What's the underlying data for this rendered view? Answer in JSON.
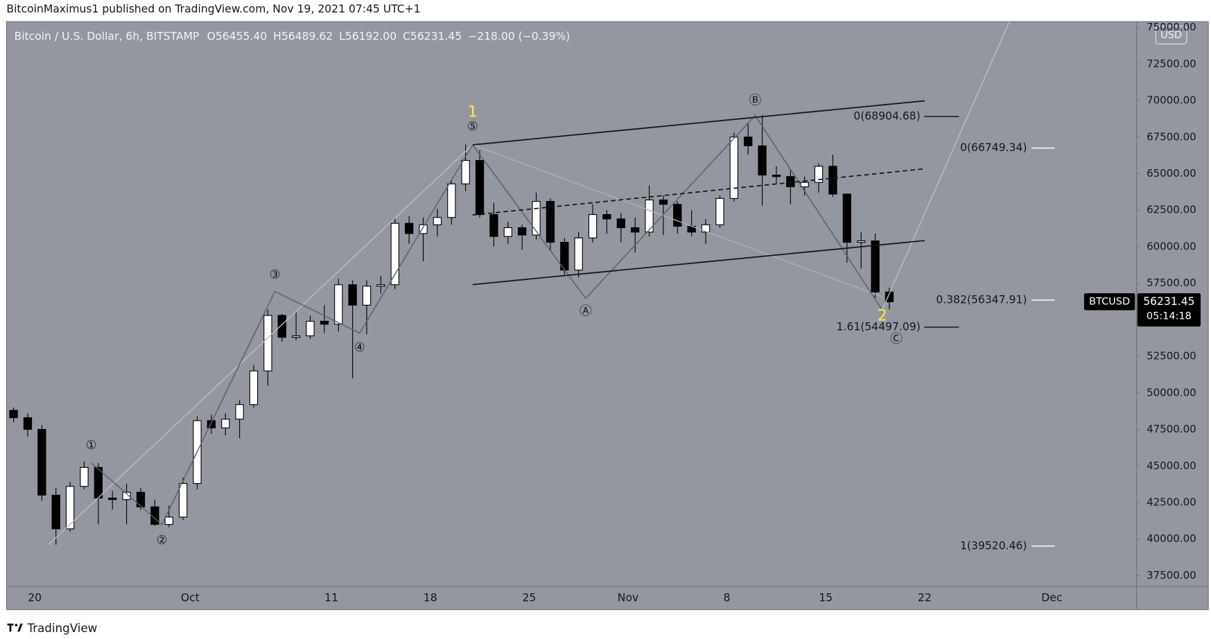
{
  "header": {
    "publisher": "BitcoinMaximus1 published on TradingView.com, Nov 19, 2021 07:45 UTC+1"
  },
  "footer": {
    "brand": "TradingView"
  },
  "chart_data": {
    "type": "candlestick",
    "title": "Bitcoin / U.S. Dollar, 6h, BITSTAMP",
    "ohlc_legend": [
      {
        "label": "O",
        "value": "56455.40"
      },
      {
        "label": "H",
        "value": "56489.62"
      },
      {
        "label": "L",
        "value": "56192.00"
      },
      {
        "label": "C",
        "value": "56231.45"
      }
    ],
    "change": "−218.00 (−0.39%)",
    "currency": "USD",
    "x": [
      "2021-09-18",
      "2021-09-19",
      "2021-09-20",
      "2021-09-21",
      "2021-09-22",
      "2021-09-23",
      "2021-09-24",
      "2021-09-25",
      "2021-09-26",
      "2021-09-27",
      "2021-09-28",
      "2021-09-29",
      "2021-09-30",
      "2021-10-01",
      "2021-10-02",
      "2021-10-03",
      "2021-10-04",
      "2021-10-05",
      "2021-10-06",
      "2021-10-07",
      "2021-10-08",
      "2021-10-09",
      "2021-10-10",
      "2021-10-11",
      "2021-10-12",
      "2021-10-13",
      "2021-10-14",
      "2021-10-15",
      "2021-10-16",
      "2021-10-17",
      "2021-10-18",
      "2021-10-19",
      "2021-10-20",
      "2021-10-21",
      "2021-10-22",
      "2021-10-23",
      "2021-10-24",
      "2021-10-25",
      "2021-10-26",
      "2021-10-27",
      "2021-10-28",
      "2021-10-29",
      "2021-10-30",
      "2021-10-31",
      "2021-11-01",
      "2021-11-02",
      "2021-11-03",
      "2021-11-04",
      "2021-11-05",
      "2021-11-06",
      "2021-11-07",
      "2021-11-08",
      "2021-11-09",
      "2021-11-10",
      "2021-11-11",
      "2021-11-12",
      "2021-11-13",
      "2021-11-14",
      "2021-11-15",
      "2021-11-16",
      "2021-11-17",
      "2021-11-18",
      "2021-11-19"
    ],
    "open": [
      48800,
      48300,
      47500,
      43000,
      40700,
      43600,
      44900,
      42800,
      42700,
      43200,
      42200,
      41000,
      41500,
      43800,
      48100,
      47600,
      48200,
      49200,
      51500,
      55300,
      53800,
      53900,
      54900,
      54700,
      57400,
      56000,
      57300,
      57400,
      61600,
      60900,
      61500,
      62000,
      64300,
      65900,
      62200,
      60700,
      61300,
      60800,
      63100,
      60300,
      58400,
      60600,
      62200,
      61900,
      61300,
      61000,
      63200,
      62900,
      61400,
      61000,
      61500,
      63300,
      67500,
      66900,
      64900,
      64800,
      64100,
      64400,
      65500,
      63600,
      60300,
      60400,
      56900
    ],
    "high": [
      49000,
      48600,
      47800,
      43500,
      43900,
      45300,
      45200,
      43300,
      43800,
      43500,
      42700,
      42300,
      44200,
      48400,
      48500,
      48600,
      49500,
      51900,
      55700,
      55400,
      55500,
      55300,
      56000,
      57800,
      57700,
      57700,
      58000,
      62000,
      62100,
      62000,
      62600,
      64500,
      67000,
      66600,
      63000,
      61700,
      61500,
      63700,
      63300,
      60600,
      61000,
      62900,
      62500,
      62300,
      62000,
      64200,
      63500,
      63100,
      62500,
      61900,
      63500,
      67800,
      68500,
      69000,
      65500,
      65300,
      64800,
      65700,
      66300,
      63600,
      61000,
      60900,
      57200
    ],
    "low": [
      48000,
      47000,
      42600,
      39600,
      40500,
      43400,
      41000,
      42000,
      41000,
      42000,
      40900,
      40800,
      41300,
      43400,
      47200,
      47100,
      46900,
      49000,
      50500,
      53500,
      53600,
      53700,
      54100,
      54200,
      51000,
      54000,
      56800,
      57100,
      60200,
      59000,
      60700,
      61500,
      63800,
      62000,
      60000,
      60200,
      59800,
      60500,
      59700,
      58100,
      57900,
      60300,
      60900,
      60300,
      59600,
      60700,
      60800,
      60900,
      60700,
      60200,
      61300,
      63100,
      66300,
      62800,
      64300,
      62900,
      63500,
      63700,
      63400,
      58900,
      58500,
      56500,
      55700
    ],
    "close": [
      48300,
      47500,
      43000,
      40700,
      43600,
      44900,
      42800,
      42700,
      43200,
      42200,
      41000,
      41500,
      43800,
      48100,
      47600,
      48200,
      49200,
      51500,
      55300,
      53800,
      53900,
      54900,
      54700,
      57400,
      56000,
      57300,
      57400,
      61600,
      60900,
      61500,
      62000,
      64300,
      65900,
      62200,
      60700,
      61300,
      60800,
      63100,
      60300,
      58400,
      60600,
      62200,
      61900,
      61300,
      61000,
      63200,
      62900,
      61400,
      61000,
      61500,
      63300,
      67500,
      66900,
      64900,
      64800,
      64100,
      64400,
      65500,
      63600,
      60300,
      60400,
      56900,
      56231.45
    ],
    "up_color": "#ffffff",
    "down_color": "#000000",
    "wick_color": "#000000",
    "xlim": [
      "2021-09-18",
      "2021-12-07"
    ],
    "xticks": [
      {
        "value": "2021-09-20",
        "label": "20"
      },
      {
        "value": "2021-10-01",
        "label": "Oct"
      },
      {
        "value": "2021-10-11",
        "label": "11"
      },
      {
        "value": "2021-10-18",
        "label": "18"
      },
      {
        "value": "2021-10-25",
        "label": "25"
      },
      {
        "value": "2021-11-01",
        "label": "Nov"
      },
      {
        "value": "2021-11-08",
        "label": "8"
      },
      {
        "value": "2021-11-15",
        "label": "15"
      },
      {
        "value": "2021-11-22",
        "label": "22"
      },
      {
        "value": "2021-12-01",
        "label": "Dec"
      }
    ],
    "ylim": [
      36750,
      75400
    ],
    "yticks": [
      {
        "value": 37500,
        "label": "37500.00"
      },
      {
        "value": 40000,
        "label": "40000.00"
      },
      {
        "value": 42500,
        "label": "42500.00"
      },
      {
        "value": 45000,
        "label": "45000.00"
      },
      {
        "value": 47500,
        "label": "47500.00"
      },
      {
        "value": 50000,
        "label": "50000.00"
      },
      {
        "value": 52500,
        "label": "52500.00"
      },
      {
        "value": 55000,
        "label": "55000.00"
      },
      {
        "value": 57500,
        "label": "57500.00"
      },
      {
        "value": 60000,
        "label": "60000.00"
      },
      {
        "value": 62500,
        "label": "62500.00"
      },
      {
        "value": 65000,
        "label": "65000.00"
      },
      {
        "value": 67500,
        "label": "67500.00"
      },
      {
        "value": 70000,
        "label": "70000.00"
      },
      {
        "value": 72500,
        "label": "72500.00"
      },
      {
        "value": 75000,
        "label": "75000.00"
      }
    ],
    "wave_labels": [
      {
        "text": "①",
        "x": "2021-09-24",
        "y": 46400,
        "color": "#131722"
      },
      {
        "text": "②",
        "x": "2021-09-29",
        "y": 39900,
        "color": "#131722"
      },
      {
        "text": "③",
        "x": "2021-10-07",
        "y": 58050,
        "color": "#131722"
      },
      {
        "text": "④",
        "x": "2021-10-13",
        "y": 53080,
        "color": "#131722"
      },
      {
        "text": "⑤",
        "x": "2021-10-21",
        "y": 68190,
        "color": "#131722"
      },
      {
        "text": "1",
        "x": "2021-10-21",
        "y": 69190,
        "color": "#ffeb3b"
      },
      {
        "text": "Ⓐ",
        "x": "2021-10-29",
        "y": 55560,
        "color": "#131722"
      },
      {
        "text": "Ⓑ",
        "x": "2021-11-10",
        "y": 69980,
        "color": "#131722"
      },
      {
        "text": "2",
        "x": "2021-11-19",
        "y": 55250,
        "color": "#ffeb3b"
      },
      {
        "text": "Ⓒ",
        "x": "2021-11-20",
        "y": 53660,
        "color": "#131722"
      }
    ],
    "drawings": [
      {
        "x": [
          "2021-09-21",
          "2021-10-21"
        ],
        "y": [
          39640,
          66970
        ],
        "color": "#b8bbc3",
        "dashed": false
      },
      {
        "x": [
          "2021-10-21",
          "2021-11-19"
        ],
        "y": [
          66970,
          56570
        ],
        "color": "#aeb0b6",
        "dashed": false
      },
      {
        "x": [
          "2021-11-19",
          "2021-11-28"
        ],
        "y": [
          55700,
          75400
        ],
        "color": "#b8bbc3",
        "dashed": false
      },
      {
        "x": [
          "2021-09-24",
          "2021-09-29",
          "2021-10-07",
          "2021-10-13",
          "2021-10-21"
        ],
        "y": [
          45210,
          40990,
          56940,
          54090,
          66970
        ],
        "color": "#5d606b",
        "dashed": false
      },
      {
        "x": [
          "2021-10-21",
          "2021-10-29",
          "2021-11-10",
          "2021-11-19"
        ],
        "y": [
          66970,
          56460,
          68980,
          55670
        ],
        "color": "#5d606b",
        "dashed": false
      },
      {
        "x": [
          "2021-10-21",
          "2021-11-22"
        ],
        "y": [
          66970,
          69980
        ],
        "color": "#131722",
        "dashed": false
      },
      {
        "x": [
          "2021-10-21",
          "2021-11-22"
        ],
        "y": [
          62170,
          65330
        ],
        "color": "#131722",
        "dashed": true
      },
      {
        "x": [
          "2021-10-21",
          "2021-11-22"
        ],
        "y": [
          57410,
          60420
        ],
        "color": "#131722",
        "dashed": false
      }
    ],
    "fib_levels": [
      {
        "value": 68904.68,
        "label": "0(68904.68)"
      },
      {
        "value": 66749.34,
        "label": "0(66749.34)"
      },
      {
        "value": 56347.91,
        "label": "0.382(56347.91)"
      },
      {
        "value": 54497.09,
        "label": "1.61(54497.09)"
      },
      {
        "value": 39520.46,
        "label": "1(39520.46)"
      }
    ],
    "last_price": {
      "symbol": "BTCUSD",
      "value": 56231.45,
      "countdown": "05:14:18"
    }
  }
}
